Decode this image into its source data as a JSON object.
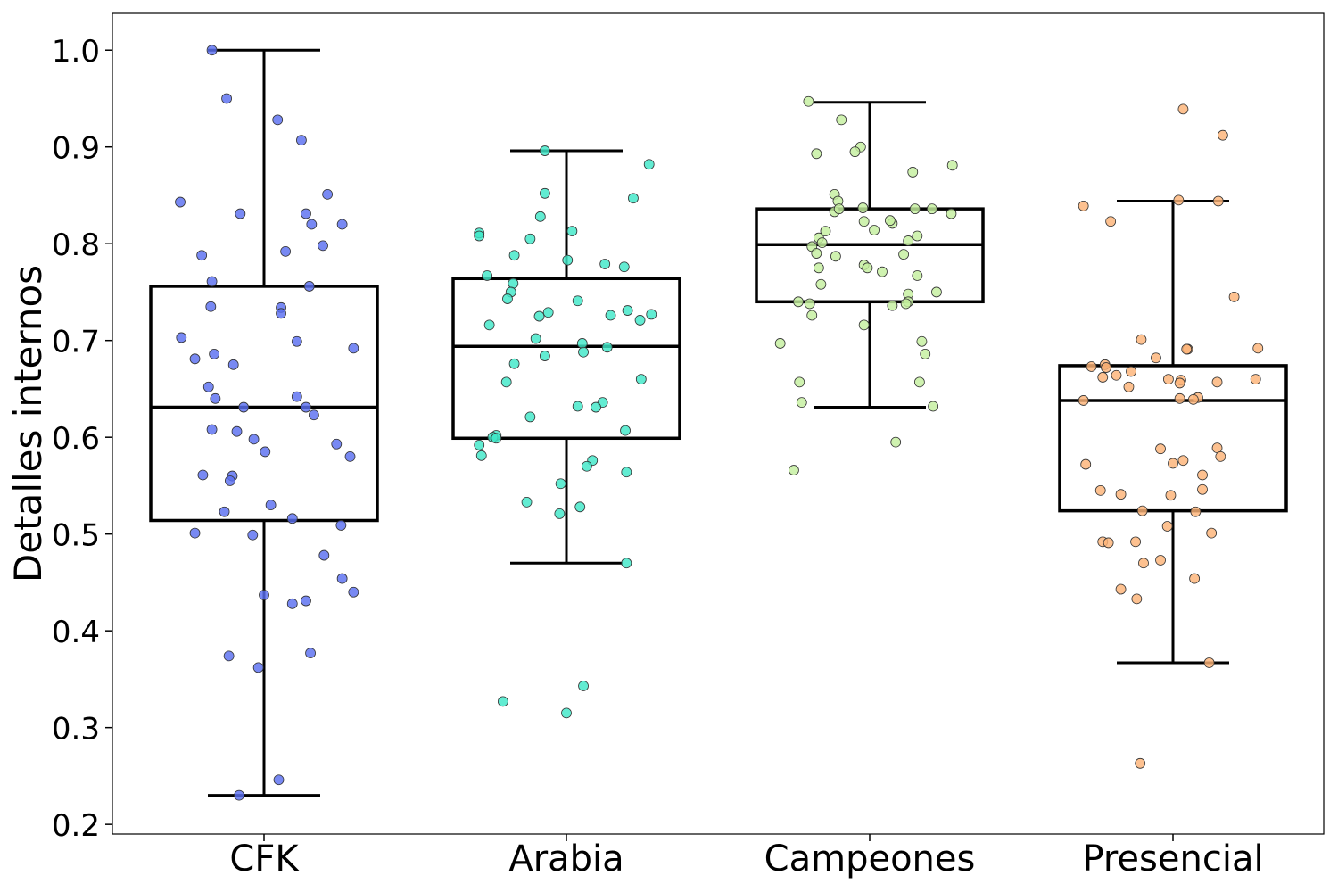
{
  "chart_data": {
    "type": "box",
    "title": "",
    "xlabel": "",
    "ylabel": "Detalles internos",
    "ylim": [
      0.19,
      1.038
    ],
    "yticks": [
      0.2,
      0.3,
      0.4,
      0.5,
      0.6,
      0.7,
      0.8,
      0.9,
      1.0
    ],
    "ytick_labels": [
      "0.2",
      "0.3",
      "0.4",
      "0.5",
      "0.6",
      "0.7",
      "0.8",
      "0.9",
      "1.0"
    ],
    "categories": [
      "CFK",
      "Arabia",
      "Campeones",
      "Presencial"
    ],
    "grid": false,
    "legend": "none",
    "series": [
      {
        "category": "CFK",
        "color": "#5a6ff0",
        "box": {
          "whisker_low": 0.23,
          "q1": 0.514,
          "median": 0.631,
          "q3": 0.756,
          "whisker_high": 1.0
        },
        "points": [
          [
            -0.46,
            1.0
          ],
          [
            -0.33,
            0.95
          ],
          [
            0.12,
            0.928
          ],
          [
            0.33,
            0.907
          ],
          [
            -0.74,
            0.843
          ],
          [
            0.56,
            0.851
          ],
          [
            -0.21,
            0.831
          ],
          [
            0.37,
            0.831
          ],
          [
            0.42,
            0.82
          ],
          [
            0.69,
            0.82
          ],
          [
            0.52,
            0.798
          ],
          [
            0.19,
            0.792
          ],
          [
            -0.55,
            0.788
          ],
          [
            -0.46,
            0.761
          ],
          [
            0.4,
            0.756
          ],
          [
            0.15,
            0.734
          ],
          [
            -0.47,
            0.735
          ],
          [
            0.15,
            0.728
          ],
          [
            -0.73,
            0.703
          ],
          [
            0.29,
            0.699
          ],
          [
            0.79,
            0.692
          ],
          [
            -0.44,
            0.686
          ],
          [
            -0.61,
            0.681
          ],
          [
            -0.27,
            0.675
          ],
          [
            -0.49,
            0.652
          ],
          [
            0.29,
            0.642
          ],
          [
            -0.43,
            0.64
          ],
          [
            -0.18,
            0.631
          ],
          [
            0.37,
            0.631
          ],
          [
            0.44,
            0.623
          ],
          [
            -0.46,
            0.608
          ],
          [
            -0.24,
            0.606
          ],
          [
            -0.09,
            0.598
          ],
          [
            0.64,
            0.593
          ],
          [
            0.01,
            0.585
          ],
          [
            0.76,
            0.58
          ],
          [
            -0.54,
            0.561
          ],
          [
            -0.28,
            0.56
          ],
          [
            -0.3,
            0.555
          ],
          [
            0.06,
            0.53
          ],
          [
            -0.35,
            0.523
          ],
          [
            0.25,
            0.516
          ],
          [
            -0.61,
            0.501
          ],
          [
            -0.1,
            0.499
          ],
          [
            0.68,
            0.509
          ],
          [
            0.53,
            0.478
          ],
          [
            0.69,
            0.454
          ],
          [
            0.79,
            0.44
          ],
          [
            0.0,
            0.437
          ],
          [
            0.25,
            0.428
          ],
          [
            0.37,
            0.431
          ],
          [
            0.41,
            0.377
          ],
          [
            -0.31,
            0.374
          ],
          [
            -0.05,
            0.362
          ],
          [
            0.13,
            0.246
          ],
          [
            -0.22,
            0.23
          ]
        ]
      },
      {
        "category": "Arabia",
        "color": "#40e8c8",
        "box": {
          "whisker_low": 0.47,
          "q1": 0.599,
          "median": 0.694,
          "q3": 0.764,
          "whisker_high": 0.896
        },
        "points": [
          [
            -0.19,
            0.896
          ],
          [
            0.73,
            0.882
          ],
          [
            -0.19,
            0.852
          ],
          [
            0.59,
            0.847
          ],
          [
            -0.23,
            0.828
          ],
          [
            -0.77,
            0.811
          ],
          [
            0.05,
            0.813
          ],
          [
            -0.77,
            0.808
          ],
          [
            -0.32,
            0.805
          ],
          [
            -0.46,
            0.788
          ],
          [
            0.01,
            0.783
          ],
          [
            0.34,
            0.779
          ],
          [
            0.51,
            0.776
          ],
          [
            -0.7,
            0.767
          ],
          [
            -0.47,
            0.759
          ],
          [
            -0.49,
            0.75
          ],
          [
            -0.52,
            0.743
          ],
          [
            0.1,
            0.741
          ],
          [
            0.54,
            0.731
          ],
          [
            -0.16,
            0.729
          ],
          [
            0.39,
            0.726
          ],
          [
            -0.24,
            0.725
          ],
          [
            0.75,
            0.727
          ],
          [
            0.65,
            0.721
          ],
          [
            -0.68,
            0.716
          ],
          [
            -0.27,
            0.702
          ],
          [
            0.14,
            0.697
          ],
          [
            0.36,
            0.693
          ],
          [
            0.15,
            0.688
          ],
          [
            -0.19,
            0.684
          ],
          [
            -0.46,
            0.676
          ],
          [
            0.66,
            0.66
          ],
          [
            -0.53,
            0.657
          ],
          [
            0.32,
            0.636
          ],
          [
            0.1,
            0.632
          ],
          [
            0.26,
            0.631
          ],
          [
            -0.32,
            0.621
          ],
          [
            0.52,
            0.607
          ],
          [
            -0.62,
            0.602
          ],
          [
            -0.65,
            0.6
          ],
          [
            -0.62,
            0.599
          ],
          [
            -0.77,
            0.592
          ],
          [
            -0.75,
            0.581
          ],
          [
            0.23,
            0.576
          ],
          [
            0.18,
            0.57
          ],
          [
            0.53,
            0.564
          ],
          [
            -0.05,
            0.552
          ],
          [
            -0.35,
            0.533
          ],
          [
            0.12,
            0.528
          ],
          [
            -0.06,
            0.521
          ],
          [
            0.53,
            0.47
          ],
          [
            0.15,
            0.343
          ],
          [
            -0.56,
            0.327
          ],
          [
            0.0,
            0.315
          ]
        ]
      },
      {
        "category": "Campeones",
        "color": "#c4ef9f",
        "box": {
          "whisker_low": 0.631,
          "q1": 0.74,
          "median": 0.799,
          "q3": 0.836,
          "whisker_high": 0.946
        },
        "points": [
          [
            -0.54,
            0.947
          ],
          [
            -0.25,
            0.928
          ],
          [
            -0.08,
            0.9
          ],
          [
            -0.13,
            0.895
          ],
          [
            -0.47,
            0.893
          ],
          [
            0.73,
            0.881
          ],
          [
            0.38,
            0.874
          ],
          [
            -0.31,
            0.851
          ],
          [
            -0.28,
            0.844
          ],
          [
            -0.31,
            0.833
          ],
          [
            -0.27,
            0.836
          ],
          [
            -0.06,
            0.837
          ],
          [
            -0.05,
            0.823
          ],
          [
            0.2,
            0.821
          ],
          [
            0.18,
            0.824
          ],
          [
            0.04,
            0.814
          ],
          [
            0.4,
            0.836
          ],
          [
            0.55,
            0.836
          ],
          [
            0.72,
            0.831
          ],
          [
            0.34,
            0.803
          ],
          [
            -0.39,
            0.813
          ],
          [
            -0.45,
            0.806
          ],
          [
            -0.42,
            0.801
          ],
          [
            0.42,
            0.808
          ],
          [
            -0.51,
            0.797
          ],
          [
            -0.47,
            0.79
          ],
          [
            -0.3,
            0.787
          ],
          [
            0.3,
            0.789
          ],
          [
            -0.05,
            0.778
          ],
          [
            -0.02,
            0.775
          ],
          [
            0.11,
            0.771
          ],
          [
            -0.45,
            0.775
          ],
          [
            0.42,
            0.767
          ],
          [
            -0.43,
            0.758
          ],
          [
            0.59,
            0.75
          ],
          [
            0.34,
            0.748
          ],
          [
            0.34,
            0.74
          ],
          [
            0.32,
            0.738
          ],
          [
            -0.63,
            0.74
          ],
          [
            -0.53,
            0.738
          ],
          [
            0.2,
            0.736
          ],
          [
            -0.51,
            0.726
          ],
          [
            -0.05,
            0.716
          ],
          [
            -0.79,
            0.697
          ],
          [
            0.46,
            0.699
          ],
          [
            0.49,
            0.686
          ],
          [
            -0.62,
            0.657
          ],
          [
            0.44,
            0.657
          ],
          [
            -0.6,
            0.636
          ],
          [
            0.56,
            0.632
          ],
          [
            0.23,
            0.595
          ],
          [
            -0.67,
            0.566
          ]
        ]
      },
      {
        "category": "Presencial",
        "color": "#fcb377",
        "box": {
          "whisker_low": 0.367,
          "q1": 0.524,
          "median": 0.638,
          "q3": 0.674,
          "whisker_high": 0.844
        },
        "points": [
          [
            0.09,
            0.939
          ],
          [
            0.44,
            0.912
          ],
          [
            -0.79,
            0.839
          ],
          [
            0.05,
            0.845
          ],
          [
            0.4,
            0.844
          ],
          [
            -0.55,
            0.823
          ],
          [
            0.54,
            0.745
          ],
          [
            -0.28,
            0.701
          ],
          [
            0.75,
            0.692
          ],
          [
            0.13,
            0.691
          ],
          [
            0.12,
            0.691
          ],
          [
            -0.15,
            0.682
          ],
          [
            -0.72,
            0.673
          ],
          [
            -0.6,
            0.675
          ],
          [
            -0.59,
            0.672
          ],
          [
            -0.37,
            0.668
          ],
          [
            -0.5,
            0.664
          ],
          [
            -0.62,
            0.662
          ],
          [
            -0.04,
            0.66
          ],
          [
            0.07,
            0.659
          ],
          [
            0.73,
            0.66
          ],
          [
            -0.39,
            0.652
          ],
          [
            0.39,
            0.657
          ],
          [
            0.06,
            0.656
          ],
          [
            0.22,
            0.641
          ],
          [
            0.06,
            0.64
          ],
          [
            0.18,
            0.639
          ],
          [
            -0.79,
            0.638
          ],
          [
            -0.11,
            0.588
          ],
          [
            0.39,
            0.589
          ],
          [
            0.42,
            0.58
          ],
          [
            0.0,
            0.573
          ],
          [
            0.09,
            0.576
          ],
          [
            -0.77,
            0.572
          ],
          [
            0.26,
            0.561
          ],
          [
            -0.64,
            0.545
          ],
          [
            -0.46,
            0.541
          ],
          [
            0.26,
            0.546
          ],
          [
            -0.02,
            0.54
          ],
          [
            -0.27,
            0.524
          ],
          [
            0.2,
            0.523
          ],
          [
            -0.05,
            0.508
          ],
          [
            0.34,
            0.501
          ],
          [
            -0.62,
            0.492
          ],
          [
            -0.57,
            0.491
          ],
          [
            -0.33,
            0.492
          ],
          [
            -0.26,
            0.47
          ],
          [
            -0.11,
            0.473
          ],
          [
            0.19,
            0.454
          ],
          [
            -0.46,
            0.443
          ],
          [
            -0.32,
            0.433
          ],
          [
            0.32,
            0.367
          ],
          [
            -0.29,
            0.263
          ]
        ]
      }
    ]
  }
}
